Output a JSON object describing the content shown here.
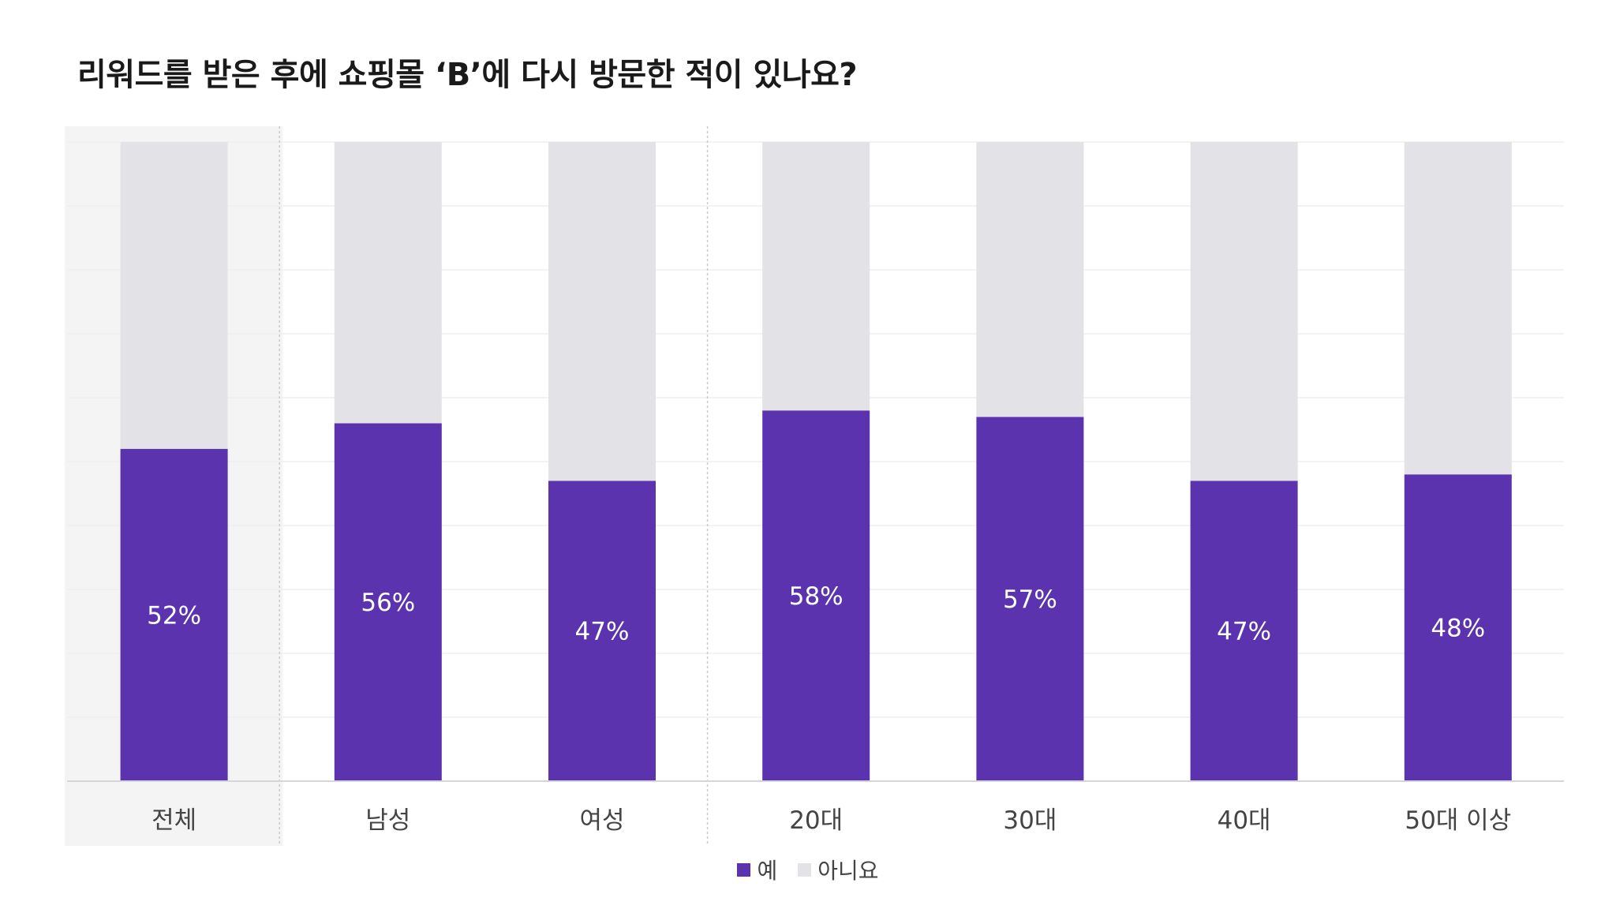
{
  "chart_data": {
    "type": "bar",
    "stacked": true,
    "percent": true,
    "title": "리워드를 받은 후에 쇼핑몰 ‘B’에 다시 방문한 적이 있나요?",
    "categories": [
      "전체",
      "남성",
      "여성",
      "20대",
      "30대",
      "40대",
      "50대 이상"
    ],
    "groups": [
      [
        "전체"
      ],
      [
        "남성",
        "여성"
      ],
      [
        "20대",
        "30대",
        "40대",
        "50대 이상"
      ]
    ],
    "series": [
      {
        "name": "예",
        "values": [
          52,
          56,
          47,
          58,
          57,
          47,
          48
        ],
        "color": "#5b33ae"
      },
      {
        "name": "아니요",
        "values": [
          48,
          44,
          53,
          42,
          43,
          53,
          52
        ],
        "color": "#e3e2e7"
      }
    ],
    "data_labels": [
      "52%",
      "56%",
      "47%",
      "58%",
      "57%",
      "47%",
      "48%"
    ],
    "ylim": [
      0,
      100
    ],
    "grid": true,
    "legend_position": "bottom-center",
    "highlight_category": "전체"
  }
}
